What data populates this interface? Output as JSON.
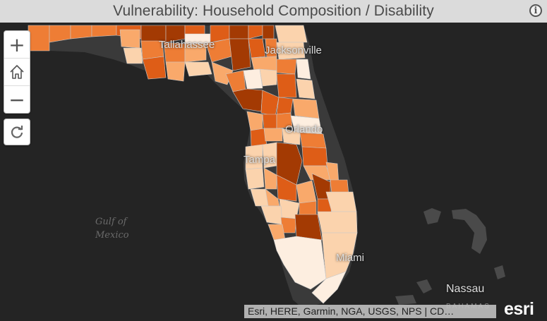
{
  "header": {
    "title": "Vulnerability: Household Composition / Disability",
    "info_icon": "info-circle-icon"
  },
  "controls": {
    "zoom_in_label": "+",
    "home_icon": "home-icon",
    "zoom_out_label": "−",
    "refresh_icon": "refresh-icon"
  },
  "map": {
    "cities": [
      {
        "name": "Tallahassee"
      },
      {
        "name": "Jacksonville"
      },
      {
        "name": "Orlando"
      },
      {
        "name": "Tampa"
      },
      {
        "name": "Miami"
      },
      {
        "name": "Nassau"
      }
    ],
    "water_label_line1": "Gulf of",
    "water_label_line2": "Mexico",
    "bahamas_label": "BAHAMAS",
    "color_scale": [
      "#fdeee0",
      "#fbd3ad",
      "#f9a96b",
      "#ee7d35",
      "#de5d17",
      "#a33a03"
    ],
    "background_color": "#242424",
    "land_color": "#2e2e2e"
  },
  "attribution": "Esri, HERE, Garmin, NGA, USGS, NPS | CD…",
  "logo": "esri"
}
